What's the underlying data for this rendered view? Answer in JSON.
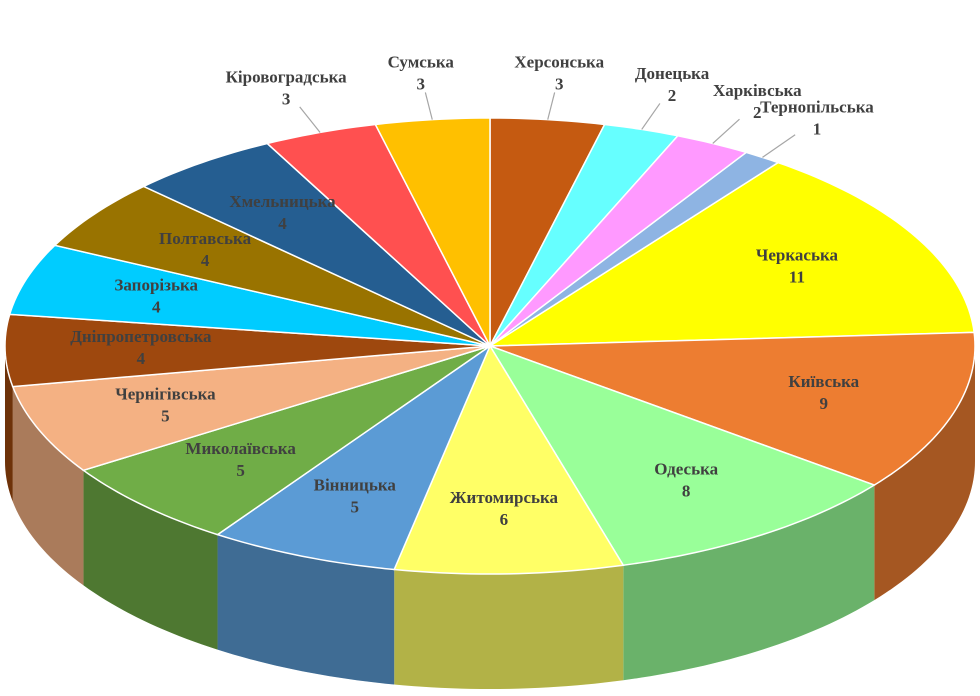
{
  "chart_data": {
    "type": "pie",
    "categories": [
      "Херсонська",
      "Донецька",
      "Харківська",
      "Тернопільська",
      "Черкаська",
      "Київська",
      "Одеська",
      "Житомирська",
      "Вінницька",
      "Миколаївська",
      "Чернігівська",
      "Дніпропетровська",
      "Запорізька",
      "Полтавська",
      "Хмельницька",
      "Кіровоградська",
      "Сумська"
    ],
    "values": [
      3,
      2,
      2,
      1,
      11,
      9,
      8,
      6,
      5,
      5,
      5,
      4,
      4,
      4,
      4,
      3,
      3
    ],
    "colors": [
      "#c55a11",
      "#66ffff",
      "#ff99ff",
      "#8eb4e3",
      "#ffff00",
      "#ed7d31",
      "#99ff99",
      "#ffff66",
      "#5b9bd5",
      "#70ad47",
      "#f4b183",
      "#9e480e",
      "#00ccff",
      "#997300",
      "#255e91",
      "#ff5050",
      "#ffc000"
    ]
  }
}
